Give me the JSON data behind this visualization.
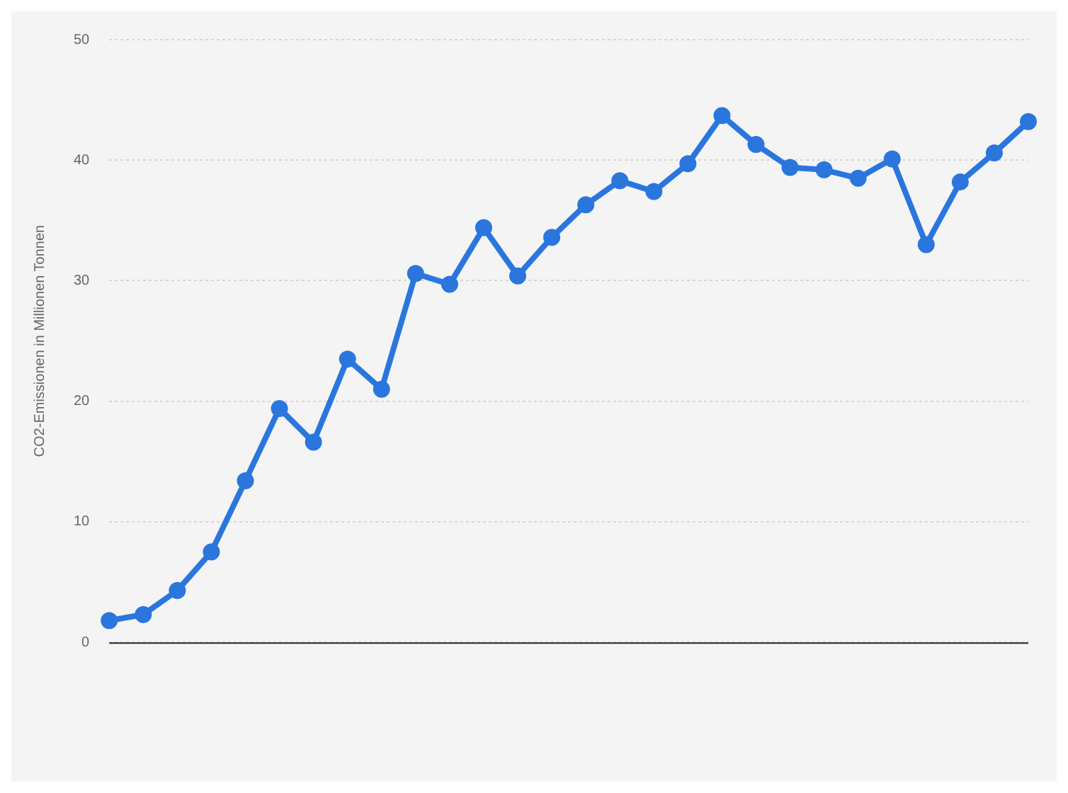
{
  "chart_data": {
    "type": "line",
    "ylabel": "CO2-Emissionen in Millionen Tonnen",
    "categories": [
      null,
      null,
      null,
      null,
      null,
      null,
      null,
      null,
      null,
      null,
      null,
      null,
      null,
      null,
      null,
      null,
      null,
      null,
      null,
      null,
      null,
      null,
      null,
      null,
      null,
      null,
      null,
      null
    ],
    "series": [
      {
        "color": "#2a76dd",
        "values": [
          1.8,
          2.3,
          4.3,
          7.5,
          13.4,
          19.4,
          16.6,
          23.5,
          21.0,
          30.6,
          29.7,
          34.4,
          30.4,
          33.6,
          36.3,
          38.3,
          37.4,
          39.7,
          43.7,
          41.3,
          39.4,
          39.2,
          38.5,
          40.1,
          33.0,
          38.2,
          40.6,
          43.2
        ]
      }
    ],
    "ylim": [
      0,
      50
    ],
    "yticks": [
      0,
      10,
      20,
      30,
      40,
      50
    ],
    "grid": "y",
    "marker": "circle",
    "line_style": "solid",
    "legend": false
  }
}
